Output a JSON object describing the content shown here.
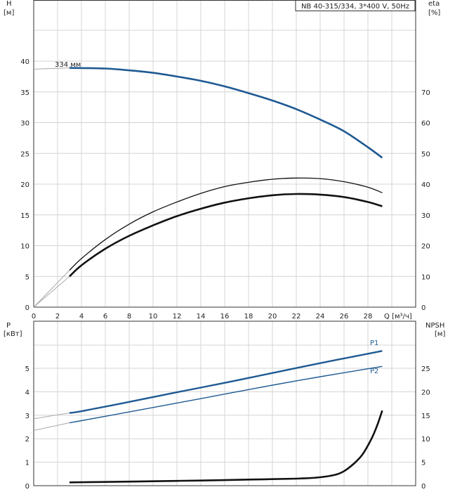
{
  "chart_data": [
    {
      "type": "line",
      "title": "NB 40-315/334, 3*400 V, 50Hz",
      "y_title": "H",
      "y_unit": "[м]",
      "y2_title": "eta",
      "y2_unit": "[%]",
      "x_label": "Q [м³/ч]",
      "xlim": [
        0,
        32
      ],
      "ylim": [
        0,
        40
      ],
      "y2lim": [
        0,
        80
      ],
      "x_ticks": [
        0,
        2,
        4,
        6,
        8,
        10,
        12,
        14,
        16,
        18,
        20,
        22,
        24,
        26,
        28
      ],
      "y_ticks": [
        0,
        5,
        10,
        15,
        20,
        25,
        30,
        35,
        40
      ],
      "y2_ticks": [
        0,
        10,
        20,
        30,
        40,
        50,
        60,
        70
      ],
      "grid": true,
      "curve_label": "334 мм",
      "colors": {
        "head": "#1f5a93",
        "eta": "#111111",
        "extrap": "#aaaaaa"
      },
      "series": [
        {
          "key": "head",
          "axis": "left",
          "x": [
            0,
            3,
            6,
            8,
            10,
            12,
            14,
            16,
            18,
            20,
            22,
            24,
            26,
            28,
            29.2
          ],
          "y": [
            38.7,
            38.9,
            38.8,
            38.5,
            38.1,
            37.5,
            36.8,
            35.9,
            34.8,
            33.6,
            32.2,
            30.5,
            28.6,
            26.0,
            24.3
          ]
        },
        {
          "key": "eta_thin",
          "axis": "left",
          "x": [
            3,
            4,
            6,
            8,
            10,
            12,
            14,
            16,
            18,
            20,
            22,
            24,
            26,
            28,
            29.2
          ],
          "y": [
            6.0,
            7.9,
            11.0,
            13.5,
            15.5,
            17.1,
            18.5,
            19.6,
            20.3,
            20.8,
            21.0,
            20.9,
            20.4,
            19.5,
            18.6
          ]
        },
        {
          "key": "eta_thick",
          "axis": "left",
          "x": [
            3,
            4,
            6,
            8,
            10,
            12,
            14,
            16,
            18,
            20,
            22,
            24,
            26,
            28,
            29.2
          ],
          "y": [
            5.0,
            6.8,
            9.5,
            11.6,
            13.3,
            14.8,
            16.0,
            17.0,
            17.7,
            18.2,
            18.4,
            18.3,
            17.9,
            17.1,
            16.4
          ]
        }
      ],
      "extrapolation": [
        {
          "key": "eta_thin_ext",
          "x": [
            0,
            3
          ],
          "y": [
            0,
            6.0
          ]
        },
        {
          "key": "eta_thick_ext",
          "x": [
            0,
            3
          ],
          "y": [
            0,
            5.0
          ]
        }
      ]
    },
    {
      "type": "line",
      "y_title": "P",
      "y_unit": "[кВт]",
      "y2_title": "NPSH",
      "y2_unit": "[м]",
      "xlim": [
        0,
        32
      ],
      "ylim": [
        0,
        6
      ],
      "y2lim": [
        0,
        30
      ],
      "y_ticks": [
        0,
        1,
        2,
        3,
        4,
        5
      ],
      "y2_ticks": [
        0,
        5,
        10,
        15,
        20,
        25
      ],
      "grid": true,
      "colors": {
        "p1": "#1f5a93",
        "p2": "#1f5a93",
        "npsh": "#111111",
        "extrap": "#aaaaaa"
      },
      "series": [
        {
          "key": "p1",
          "name": "P1",
          "axis": "left",
          "x": [
            3,
            4,
            8,
            12,
            16,
            20,
            24,
            28,
            29.2
          ],
          "y": [
            3.1,
            3.17,
            3.57,
            3.98,
            4.38,
            4.8,
            5.22,
            5.62,
            5.74
          ]
        },
        {
          "key": "p2",
          "name": "P2",
          "axis": "left",
          "x": [
            3,
            4,
            8,
            12,
            16,
            20,
            24,
            28,
            29.2
          ],
          "y": [
            2.68,
            2.77,
            3.14,
            3.52,
            3.9,
            4.28,
            4.64,
            4.98,
            5.08
          ]
        },
        {
          "key": "npsh",
          "axis": "right",
          "x": [
            3,
            6,
            10,
            14,
            18,
            22,
            24,
            25.5,
            26.5,
            27.5,
            28.3,
            28.8,
            29.2
          ],
          "y": [
            0.7,
            0.8,
            0.95,
            1.1,
            1.3,
            1.5,
            1.8,
            2.5,
            4.0,
            6.5,
            10.0,
            13.0,
            16.0
          ]
        }
      ],
      "extrapolation": [
        {
          "key": "p1_ext",
          "x": [
            0,
            3
          ],
          "y": [
            2.85,
            3.1
          ]
        },
        {
          "key": "p2_ext",
          "x": [
            0,
            3
          ],
          "y": [
            2.35,
            2.68
          ]
        }
      ]
    }
  ]
}
